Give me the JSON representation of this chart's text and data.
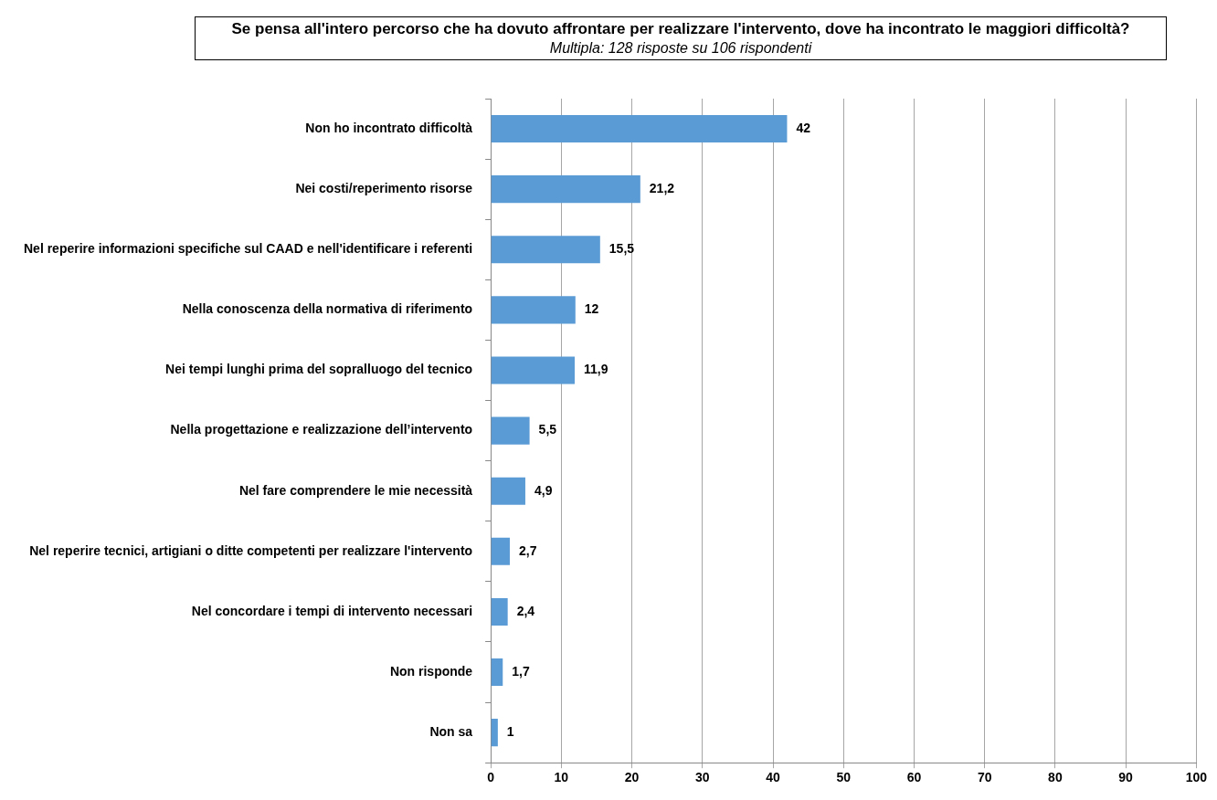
{
  "chart_data": {
    "type": "bar",
    "orientation": "horizontal",
    "title": "Se pensa all'intero percorso che ha dovuto affrontare per realizzare l'intervento, dove ha incontrato le maggiori difficoltà?",
    "subtitle": "Multipla: 128 risposte su 106 rispondenti",
    "categories": [
      "Non ho incontrato difficoltà",
      "Nei costi/reperimento risorse",
      "Nel reperire informazioni specifiche sul CAAD e nell'identificare i referenti",
      "Nella conoscenza della normativa di riferimento",
      "Nei tempi lunghi prima del sopralluogo del tecnico",
      "Nella progettazione e realizzazione dell’intervento",
      "Nel fare comprendere le mie necessità",
      "Nel reperire tecnici, artigiani o ditte competenti per realizzare l'intervento",
      "Nel concordare i tempi di intervento necessari",
      "Non risponde",
      "Non sa"
    ],
    "values": [
      42,
      21.2,
      15.5,
      12,
      11.9,
      5.5,
      4.9,
      2.7,
      2.4,
      1.7,
      1
    ],
    "value_labels": [
      "42",
      "21,2",
      "15,5",
      "12",
      "11,9",
      "5,5",
      "4,9",
      "2,7",
      "2,4",
      "1,7",
      "1"
    ],
    "color": "#5b9bd5",
    "xlim": [
      0,
      100
    ],
    "xticks": [
      0,
      10,
      20,
      30,
      40,
      50,
      60,
      70,
      80,
      90,
      100
    ],
    "grid": "x",
    "legend": false
  }
}
